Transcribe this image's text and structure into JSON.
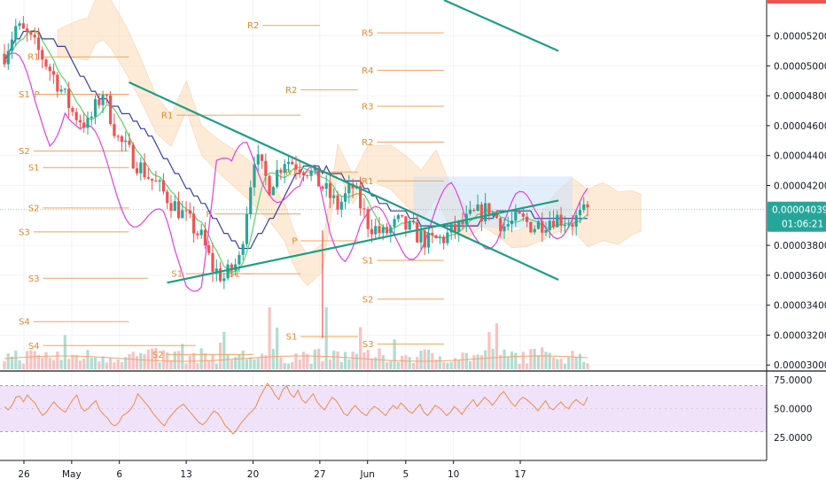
{
  "chart_data": {
    "type": "candlestick",
    "price_axis": {
      "ticks": [
        "0.00005200",
        "0.00005000",
        "0.00004800",
        "0.00004600",
        "0.00004400",
        "0.00004200",
        "0.00003800",
        "0.00003600",
        "0.00003400",
        "0.00003200",
        "0.00003000"
      ],
      "tick_values": [
        5.2e-05,
        5e-05,
        4.8e-05,
        4.6e-05,
        4.4e-05,
        4.2e-05,
        3.8e-05,
        3.6e-05,
        3.4e-05,
        3.2e-05,
        3e-05
      ],
      "range": [
        2.96e-05,
        5.44e-05
      ]
    },
    "last_price": {
      "value": 4.039e-05,
      "label": "0.00004039",
      "countdown": "01:06:21",
      "color": "#26a69a"
    },
    "rsi_axis": {
      "ticks": [
        "75.0000",
        "50.0000",
        "25.0000"
      ],
      "tick_values": [
        75,
        50,
        25
      ],
      "range": [
        5,
        82
      ],
      "band": [
        30,
        70
      ]
    },
    "time_axis": {
      "labels": [
        "26",
        "May",
        "6",
        "13",
        "20",
        "27",
        "Jun",
        "5",
        "10",
        "17"
      ],
      "dates": [
        "2019-04-26",
        "2019-05-01",
        "2019-05-06",
        "2019-05-13",
        "2019-05-20",
        "2019-05-27",
        "2019-06-01",
        "2019-06-05",
        "2019-06-10",
        "2019-06-17"
      ]
    },
    "pivot_lines": [
      {
        "label": "R2",
        "start": "2019-05-21",
        "end": "2019-05-27",
        "price": 5.27e-05
      },
      {
        "label": "R1",
        "start": "2019-04-28",
        "end": "2019-05-07",
        "price": 5.06e-05
      },
      {
        "label": "P",
        "start": "2019-04-28",
        "end": "2019-05-07",
        "price": 4.81e-05
      },
      {
        "label": "S1",
        "start": "2019-04-27",
        "end": "2019-05-03",
        "price": 4.81e-05
      },
      {
        "label": "S2",
        "start": "2019-04-27",
        "end": "2019-05-07",
        "price": 4.43e-05
      },
      {
        "label": "S1",
        "start": "2019-04-28",
        "end": "2019-05-07",
        "price": 4.32e-05
      },
      {
        "label": "S2",
        "start": "2019-04-28",
        "end": "2019-05-07",
        "price": 4.05e-05
      },
      {
        "label": "S3",
        "start": "2019-04-27",
        "end": "2019-05-07",
        "price": 3.89e-05
      },
      {
        "label": "S3",
        "start": "2019-04-28",
        "end": "2019-05-09",
        "price": 3.58e-05
      },
      {
        "label": "S4",
        "start": "2019-04-27",
        "end": "2019-05-07",
        "price": 3.29e-05
      },
      {
        "label": "S4",
        "start": "2019-04-28",
        "end": "2019-05-14",
        "price": 3.13e-05
      },
      {
        "label": "S2",
        "start": "2019-05-11",
        "end": "2019-05-20",
        "price": 3.07e-05
      },
      {
        "label": "R1",
        "start": "2019-05-12",
        "end": "2019-05-25",
        "price": 4.67e-05
      },
      {
        "label": "P",
        "start": "2019-05-16",
        "end": "2019-05-25",
        "price": 4.01e-05
      },
      {
        "label": "S1",
        "start": "2019-05-13",
        "end": "2019-05-20",
        "price": 3.61e-05
      },
      {
        "label": "S1",
        "start": "2019-05-19",
        "end": "2019-05-25",
        "price": 3.61e-05
      },
      {
        "label": "R2",
        "start": "2019-05-25",
        "end": "2019-05-31",
        "price": 4.84e-05
      },
      {
        "label": "R1",
        "start": "2019-05-25",
        "end": "2019-05-31",
        "price": 4.29e-05
      },
      {
        "label": "P",
        "start": "2019-05-25",
        "end": "2019-05-31",
        "price": 3.83e-05
      },
      {
        "label": "S1",
        "start": "2019-05-25",
        "end": "2019-05-31",
        "price": 3.19e-05
      },
      {
        "label": "R5",
        "start": "2019-06-02",
        "end": "2019-06-09",
        "price": 5.22e-05
      },
      {
        "label": "R4",
        "start": "2019-06-02",
        "end": "2019-06-09",
        "price": 4.97e-05
      },
      {
        "label": "R3",
        "start": "2019-06-02",
        "end": "2019-06-09",
        "price": 4.73e-05
      },
      {
        "label": "R2",
        "start": "2019-06-02",
        "end": "2019-06-09",
        "price": 4.49e-05
      },
      {
        "label": "R1",
        "start": "2019-06-02",
        "end": "2019-06-09",
        "price": 4.23e-05
      },
      {
        "label": "S1",
        "start": "2019-06-02",
        "end": "2019-06-09",
        "price": 3.7e-05
      },
      {
        "label": "S2",
        "start": "2019-06-02",
        "end": "2019-06-09",
        "price": 3.44e-05
      },
      {
        "label": "S3",
        "start": "2019-06-02",
        "end": "2019-06-09",
        "price": 3.14e-05
      }
    ],
    "trendlines": [
      {
        "name": "upper-descending",
        "from": [
          "2019-05-07",
          4.89e-05
        ],
        "to": [
          "2019-06-21",
          3.57e-05
        ],
        "color": "#1e9e86"
      },
      {
        "name": "lower-ascending",
        "from": [
          "2019-05-11",
          3.55e-05
        ],
        "to": [
          "2019-06-21",
          4.1e-05
        ],
        "color": "#1e9e86"
      },
      {
        "name": "upper-right",
        "from": [
          "2019-06-09",
          5.44e-05
        ],
        "to": [
          "2019-06-21",
          5.1e-05
        ],
        "color": "#1e9e86"
      }
    ],
    "rsi": [
      52,
      49,
      53,
      60,
      61,
      56,
      62,
      58,
      55,
      49,
      44,
      47,
      52,
      56,
      52,
      49,
      47,
      53,
      58,
      62,
      52,
      48,
      50,
      54,
      57,
      49,
      45,
      42,
      37,
      35,
      38,
      44,
      46,
      49,
      54,
      63,
      59,
      55,
      51,
      46,
      42,
      38,
      35,
      41,
      45,
      49,
      52,
      54,
      50,
      46,
      42,
      38,
      36,
      39,
      44,
      48,
      46,
      41,
      35,
      32,
      28,
      32,
      37,
      41,
      45,
      48,
      52,
      60,
      66,
      72,
      68,
      62,
      58,
      66,
      70,
      63,
      60,
      66,
      58,
      55,
      59,
      63,
      56,
      52,
      49,
      55,
      60,
      57,
      52,
      46,
      44,
      49,
      53,
      49,
      46,
      44,
      49,
      52,
      50,
      47,
      44,
      49,
      53,
      50,
      55,
      52,
      48,
      46,
      50,
      54,
      47,
      44,
      48,
      53,
      51,
      48,
      44,
      47,
      52,
      49,
      45,
      50,
      54,
      58,
      52,
      56,
      60,
      57,
      53,
      57,
      62,
      65,
      60,
      55,
      52,
      57,
      60,
      58,
      55,
      52,
      48,
      53,
      57,
      51,
      49,
      53,
      56,
      52,
      50,
      55,
      58,
      55,
      53,
      60
    ]
  }
}
